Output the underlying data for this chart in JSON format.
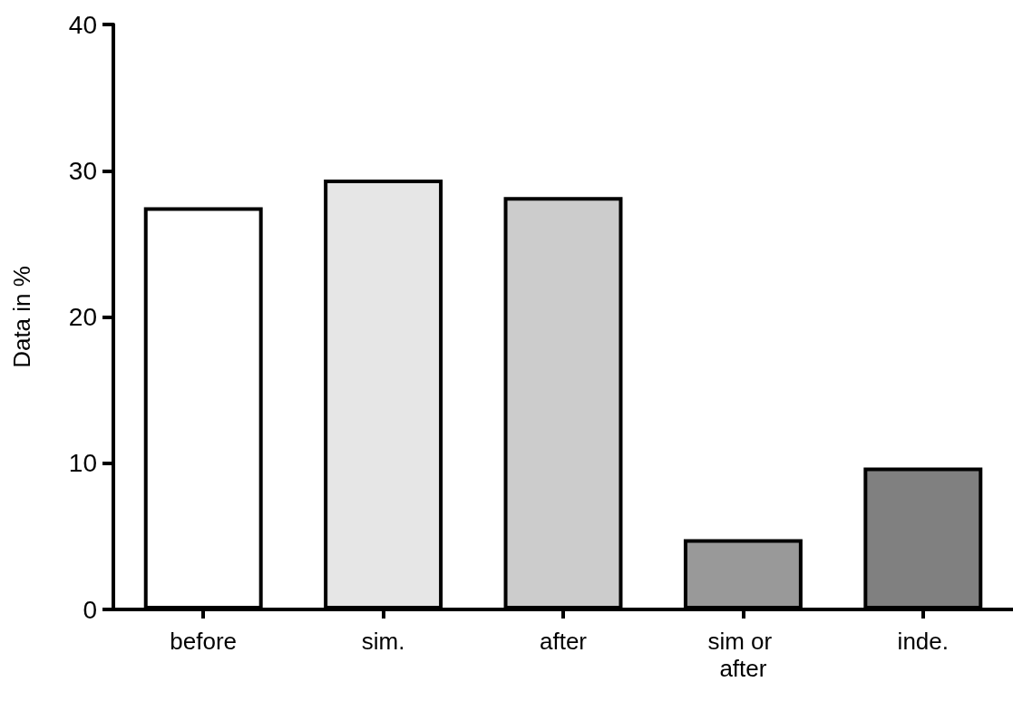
{
  "chart_data": {
    "type": "bar",
    "ylabel": "Data in %",
    "categories": [
      "before",
      "sim.",
      "after",
      "sim or after",
      "inde."
    ],
    "values": [
      27.5,
      29.4,
      28.2,
      4.8,
      9.7
    ],
    "colors": [
      "#ffffff",
      "#e6e6e6",
      "#cccccc",
      "#999999",
      "#808080"
    ],
    "ylim": [
      0,
      40
    ],
    "yticks": [
      0,
      10,
      20,
      30,
      40
    ],
    "grid": false
  }
}
